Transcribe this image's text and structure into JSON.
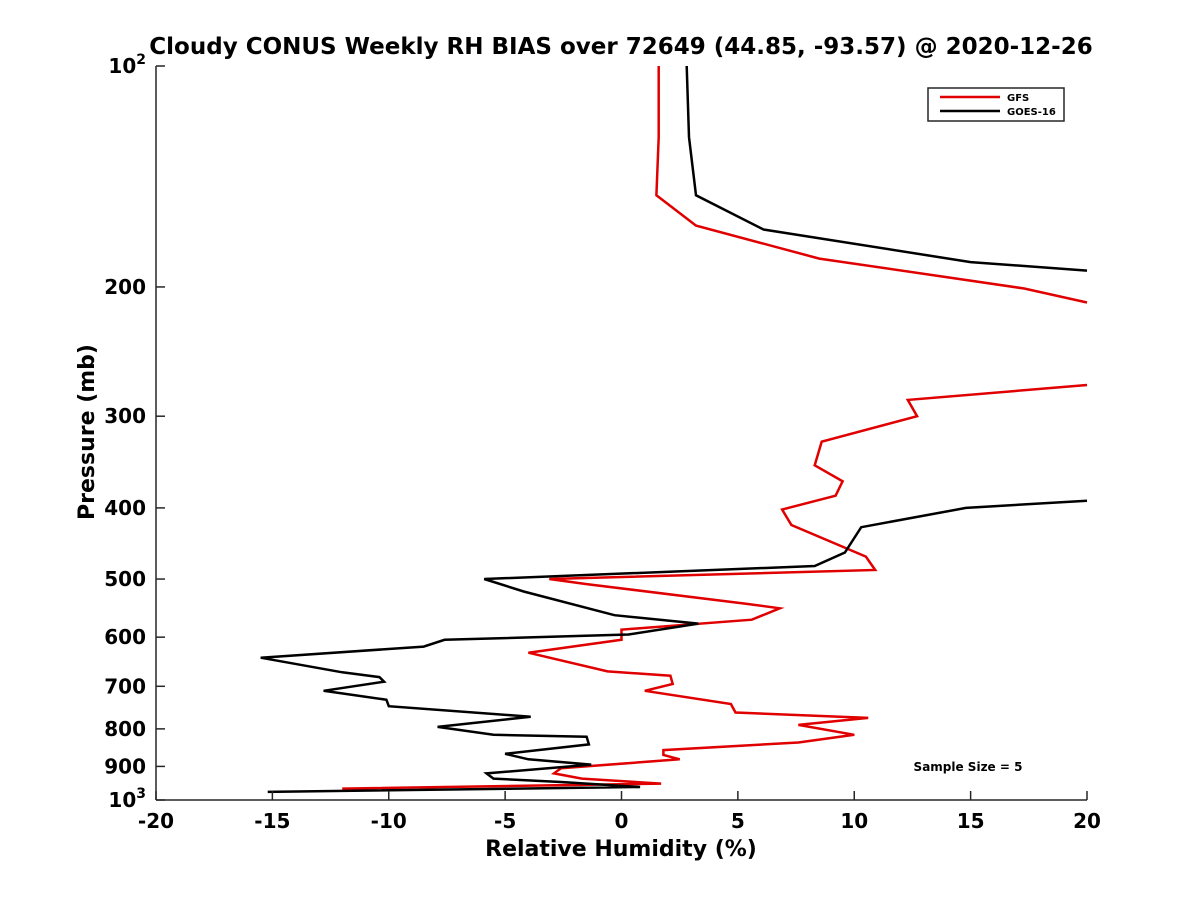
{
  "chart_data": {
    "type": "line",
    "title": "Cloudy CONUS Weekly RH BIAS over 72649 (44.85, -93.57) @ 2020-12-26",
    "xlabel": "Relative Humidity (%)",
    "ylabel": "Pressure (mb)",
    "xlim": [
      -20,
      20
    ],
    "ylim": [
      100,
      1000
    ],
    "y_scale": "log",
    "y_reversed": true,
    "grid": false,
    "x_ticks": [
      -20,
      -15,
      -10,
      -5,
      0,
      5,
      10,
      15,
      20
    ],
    "x_tick_labels": [
      "-20",
      "-15",
      "-10",
      "-5",
      "0",
      "5",
      "10",
      "15",
      "20"
    ],
    "y_ticks": [
      100,
      200,
      300,
      400,
      500,
      600,
      700,
      800,
      900,
      1000
    ],
    "y_tick_labels": [
      "10^2",
      "200",
      "300",
      "400",
      "500",
      "600",
      "700",
      "800",
      "900",
      "10^3"
    ],
    "legend_position": "top-right",
    "annotation": "Sample Size = 5",
    "series": [
      {
        "name": "GFS",
        "color": "#e00000",
        "points": [
          [
            1.6,
            100
          ],
          [
            1.6,
            125
          ],
          [
            1.5,
            150
          ],
          [
            3.2,
            165
          ],
          [
            8.5,
            183
          ],
          [
            17.3,
            201
          ],
          [
            20.0,
            210
          ],
          [
            null,
            272
          ],
          [
            20.0,
            272
          ],
          [
            12.3,
            285
          ],
          [
            12.7,
            300
          ],
          [
            8.6,
            325
          ],
          [
            8.3,
            350
          ],
          [
            9.5,
            368
          ],
          [
            9.2,
            385
          ],
          [
            6.9,
            402
          ],
          [
            7.3,
            422
          ],
          [
            10.5,
            466
          ],
          [
            10.9,
            486
          ],
          [
            -3.1,
            500
          ],
          [
            -1.5,
            508
          ],
          [
            5.3,
            540
          ],
          [
            6.8,
            548
          ],
          [
            5.6,
            568
          ],
          [
            0,
            586
          ],
          [
            0,
            605
          ],
          [
            -4.0,
            630
          ],
          [
            -0.6,
            668
          ],
          [
            2.1,
            677
          ],
          [
            2.2,
            695
          ],
          [
            1.0,
            710
          ],
          [
            4.7,
            740
          ],
          [
            4.9,
            760
          ],
          [
            10.6,
            773
          ],
          [
            7.6,
            790
          ],
          [
            10.0,
            815
          ],
          [
            7.6,
            835
          ],
          [
            1.8,
            855
          ],
          [
            1.8,
            868
          ],
          [
            2.5,
            880
          ],
          [
            -2.6,
            905
          ],
          [
            -2.9,
            920
          ],
          [
            -1.7,
            935
          ],
          [
            1.7,
            950
          ],
          [
            -12.0,
            965
          ]
        ]
      },
      {
        "name": "GOES-16",
        "color": "#000000",
        "points": [
          [
            2.8,
            100
          ],
          [
            2.9,
            125
          ],
          [
            3.2,
            150
          ],
          [
            6.1,
            167
          ],
          [
            15.0,
            185
          ],
          [
            20.0,
            190
          ],
          [
            null,
            391
          ],
          [
            20.0,
            391
          ],
          [
            14.8,
            400
          ],
          [
            10.3,
            425
          ],
          [
            9.6,
            460
          ],
          [
            8.3,
            480
          ],
          [
            -5.9,
            500
          ],
          [
            -4.2,
            520
          ],
          [
            -0.3,
            560
          ],
          [
            3.3,
            575
          ],
          [
            0.3,
            595
          ],
          [
            -7.6,
            605
          ],
          [
            -8.5,
            618
          ],
          [
            -15.5,
            640
          ],
          [
            -12.0,
            670
          ],
          [
            -10.4,
            680
          ],
          [
            -10.2,
            690
          ],
          [
            -12.8,
            710
          ],
          [
            -10.1,
            730
          ],
          [
            -10.0,
            745
          ],
          [
            -3.9,
            770
          ],
          [
            -7.9,
            795
          ],
          [
            -5.5,
            815
          ],
          [
            -1.5,
            820
          ],
          [
            -1.4,
            840
          ],
          [
            -5.0,
            865
          ],
          [
            -4.0,
            880
          ],
          [
            -1.3,
            895
          ],
          [
            -5.8,
            920
          ],
          [
            -5.5,
            935
          ],
          [
            -2.6,
            945
          ],
          [
            0.8,
            960
          ],
          [
            -15.2,
            975
          ]
        ]
      }
    ]
  }
}
